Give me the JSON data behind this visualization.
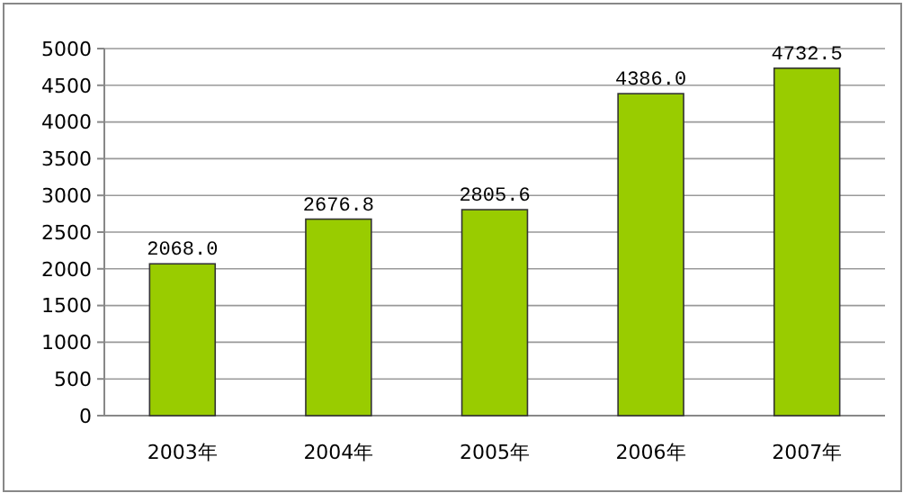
{
  "chart_data": {
    "type": "bar",
    "categories": [
      "2003年",
      "2004年",
      "2005年",
      "2006年",
      "2007年"
    ],
    "values": [
      2068.0,
      2676.8,
      2805.6,
      4386.0,
      4732.5
    ],
    "value_labels": [
      "2068.0",
      "2676.8",
      "2805.6",
      "4386.0",
      "4732.5"
    ],
    "color": "#99cc00",
    "ylim": [
      0,
      5000
    ],
    "yticks": [
      0,
      500,
      1000,
      1500,
      2000,
      2500,
      3000,
      3500,
      4000,
      4500,
      5000
    ],
    "grid": "y"
  }
}
